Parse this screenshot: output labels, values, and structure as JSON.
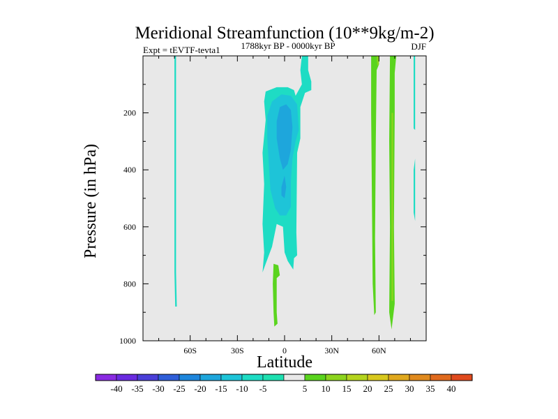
{
  "chart_data": {
    "type": "heatmap",
    "title": "Meridional Streamfunction (10**9kg/m-2)",
    "left_subtitle": "Expt = tEVTF-tevta1",
    "center_subtitle": "1788kyr BP - 0000kyr BP",
    "right_subtitle": "DJF",
    "xlabel": "Latitude",
    "ylabel": "Pressure (in hPa)",
    "xlim": [
      -90,
      90
    ],
    "ylim": [
      1000,
      0
    ],
    "x_ticks": [
      {
        "value": -60,
        "label": "60S"
      },
      {
        "value": -30,
        "label": "30S"
      },
      {
        "value": 0,
        "label": "0"
      },
      {
        "value": 30,
        "label": "30N"
      },
      {
        "value": 60,
        "label": "60N"
      }
    ],
    "y_ticks": [
      {
        "value": 200,
        "label": "200"
      },
      {
        "value": 400,
        "label": "400"
      },
      {
        "value": 600,
        "label": "600"
      },
      {
        "value": 800,
        "label": "800"
      },
      {
        "value": 1000,
        "label": "1000"
      }
    ],
    "colorbar": {
      "labels": [
        "-40",
        "-35",
        "-30",
        "-25",
        "-20",
        "-15",
        "-10",
        "-5",
        "5",
        "10",
        "15",
        "20",
        "25",
        "30",
        "35",
        "40"
      ],
      "colors": [
        "#8a2be2",
        "#6a2be0",
        "#4a3fd8",
        "#2f5ed8",
        "#1e86dc",
        "#1ea6dc",
        "#1ec4d8",
        "#1edcc4",
        "#1ee0b0",
        "#e8e8e8",
        "#5ad41e",
        "#8cd41e",
        "#b4d41e",
        "#d8c81e",
        "#e0a81e",
        "#e08a1e",
        "#e06a1e",
        "#e04a1e"
      ]
    },
    "regions": [
      {
        "level": "-5",
        "color": "#1edcc4",
        "points": [
          [
            -70,
            0
          ],
          [
            -69,
            0
          ],
          [
            -69,
            760
          ],
          [
            -68.5,
            880
          ],
          [
            -69.5,
            880
          ],
          [
            -70,
            760
          ]
        ]
      },
      {
        "level": "-5",
        "color": "#1edcc4",
        "points": [
          [
            11,
            0
          ],
          [
            15,
            0
          ],
          [
            15,
            50
          ],
          [
            17,
            90
          ],
          [
            17,
            120
          ],
          [
            13,
            130
          ],
          [
            10,
            180
          ],
          [
            10,
            290
          ],
          [
            8,
            340
          ],
          [
            7.5,
            620
          ],
          [
            8,
            700
          ],
          [
            6,
            710
          ],
          [
            5.5,
            750
          ],
          [
            2,
            720
          ],
          [
            0,
            690
          ],
          [
            -1,
            600
          ],
          [
            -5,
            590
          ],
          [
            -8,
            670
          ],
          [
            -12,
            730
          ],
          [
            -14,
            760
          ],
          [
            -13,
            690
          ],
          [
            -14,
            590
          ],
          [
            -13,
            450
          ],
          [
            -14,
            340
          ],
          [
            -12,
            225
          ],
          [
            -13,
            160
          ],
          [
            -12,
            125
          ],
          [
            -5,
            110
          ],
          [
            2,
            110
          ],
          [
            6,
            120
          ],
          [
            7,
            140
          ],
          [
            11,
            100
          ],
          [
            10,
            50
          ]
        ]
      },
      {
        "level": "-10",
        "color": "#1ec4d8",
        "points": [
          [
            -8,
            160
          ],
          [
            -2,
            135
          ],
          [
            4,
            140
          ],
          [
            8,
            170
          ],
          [
            9,
            260
          ],
          [
            7,
            300
          ],
          [
            5,
            360
          ],
          [
            4,
            440
          ],
          [
            4,
            530
          ],
          [
            1,
            560
          ],
          [
            -3,
            560
          ],
          [
            -6,
            535
          ],
          [
            -9,
            470
          ],
          [
            -10,
            380
          ],
          [
            -11,
            290
          ],
          [
            -11,
            210
          ]
        ]
      },
      {
        "level": "-15",
        "color": "#1ea6dc",
        "points": [
          [
            -5,
            230
          ],
          [
            -3,
            180
          ],
          [
            1,
            170
          ],
          [
            4,
            190
          ],
          [
            5,
            250
          ],
          [
            4,
            330
          ],
          [
            2,
            380
          ],
          [
            -1,
            400
          ],
          [
            -3,
            360
          ],
          [
            -5,
            290
          ]
        ]
      },
      {
        "level": "-15",
        "color": "#1ea6dc",
        "points": [
          [
            -2,
            460
          ],
          [
            0,
            420
          ],
          [
            1,
            460
          ],
          [
            0,
            500
          ],
          [
            -2,
            490
          ]
        ]
      },
      {
        "level": "-5",
        "color": "#1edcc4",
        "points": [
          [
            82,
            0
          ],
          [
            83,
            0
          ],
          [
            83,
            260
          ],
          [
            82,
            255
          ]
        ]
      },
      {
        "level": "-5",
        "color": "#1edcc4",
        "points": [
          [
            82,
            400
          ],
          [
            83,
            360
          ],
          [
            83,
            580
          ],
          [
            82,
            550
          ]
        ]
      },
      {
        "level": "10",
        "color": "#5ad41e",
        "points": [
          [
            55,
            0
          ],
          [
            60,
            0
          ],
          [
            60,
            30
          ],
          [
            58.5,
            50
          ],
          [
            58,
            300
          ],
          [
            57.5,
            640
          ],
          [
            58,
            900
          ],
          [
            57,
            910
          ],
          [
            56,
            800
          ],
          [
            55.5,
            500
          ],
          [
            55,
            200
          ]
        ]
      },
      {
        "level": "15",
        "color": "#8cd41e",
        "points": [
          [
            58.5,
            0
          ],
          [
            60,
            0
          ],
          [
            60,
            30
          ],
          [
            59,
            35
          ]
        ]
      },
      {
        "level": "10",
        "color": "#5ad41e",
        "points": [
          [
            67,
            0
          ],
          [
            71,
            0
          ],
          [
            70,
            60
          ],
          [
            70,
            200
          ],
          [
            69.5,
            600
          ],
          [
            70,
            870
          ],
          [
            68,
            960
          ],
          [
            66.5,
            900
          ],
          [
            67,
            600
          ],
          [
            66.5,
            300
          ]
        ]
      },
      {
        "level": "15",
        "color": "#8cd41e",
        "points": [
          [
            68,
            200
          ],
          [
            69,
            200
          ],
          [
            69,
            860
          ],
          [
            68,
            860
          ]
        ]
      },
      {
        "level": "10",
        "color": "#5ad41e",
        "points": [
          [
            -7,
            730
          ],
          [
            -4,
            735
          ],
          [
            -3,
            770
          ],
          [
            -5,
            780
          ],
          [
            -5,
            830
          ],
          [
            -5,
            900
          ],
          [
            -4.5,
            940
          ],
          [
            -6.5,
            950
          ],
          [
            -7,
            900
          ],
          [
            -7.5,
            800
          ]
        ]
      }
    ]
  }
}
